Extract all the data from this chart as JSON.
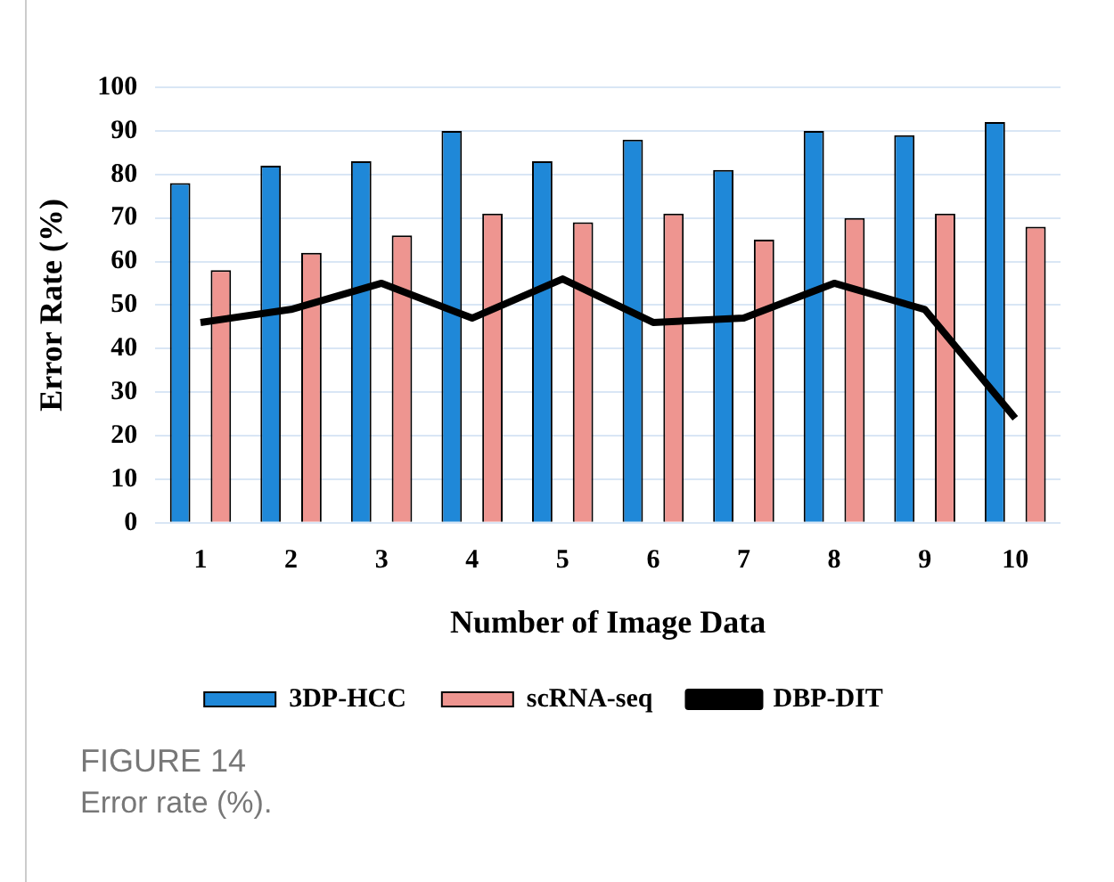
{
  "chart_data": {
    "type": "bar",
    "xlabel": "Number of Image Data",
    "ylabel": "Error Rate (%)",
    "categories": [
      "1",
      "2",
      "3",
      "4",
      "5",
      "6",
      "7",
      "8",
      "9",
      "10"
    ],
    "series": [
      {
        "name": "3DP-HCC",
        "color": "#1f88d8",
        "values": [
          78,
          82,
          83,
          90,
          83,
          88,
          81,
          90,
          89,
          92
        ]
      },
      {
        "name": "scRNA-seq",
        "color": "#ee9590",
        "values": [
          58,
          62,
          66,
          71,
          69,
          71,
          65,
          70,
          71,
          68
        ]
      },
      {
        "name": "DBP-DIT",
        "type": "line",
        "color": "#000000",
        "values": [
          46,
          49,
          55,
          47,
          56,
          46,
          47,
          55,
          49,
          24
        ]
      }
    ],
    "ylim": [
      0,
      100
    ],
    "yticks": [
      0,
      10,
      20,
      30,
      40,
      50,
      60,
      70,
      80,
      90,
      100
    ],
    "grid": "y",
    "legend": "bottom",
    "marker": "none",
    "line_style": "solid",
    "annotations": [
      "FIGURE 14",
      "Error rate (%)."
    ]
  }
}
